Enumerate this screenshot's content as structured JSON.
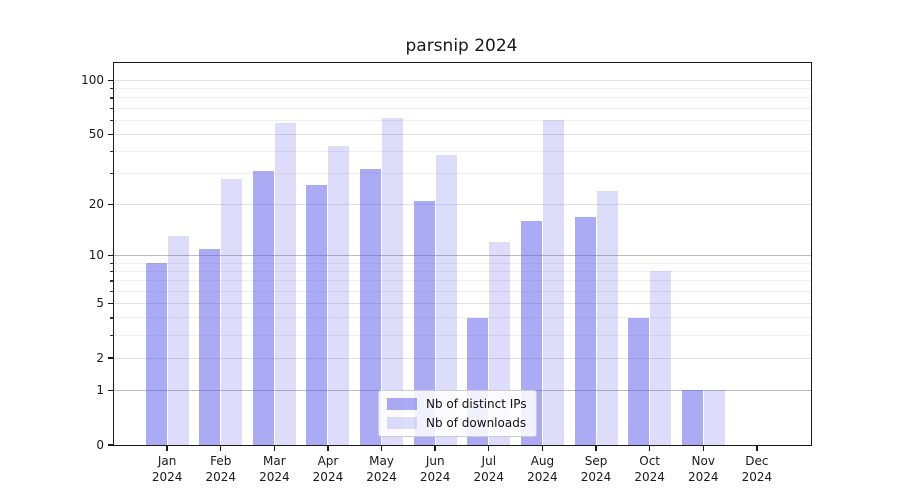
{
  "chart_data": {
    "type": "bar",
    "title": "parsnip 2024",
    "categories": [
      "Jan",
      "Feb",
      "Mar",
      "Apr",
      "May",
      "Jun",
      "Jul",
      "Aug",
      "Sep",
      "Oct",
      "Nov",
      "Dec"
    ],
    "x_tick_year": "2024",
    "series": [
      {
        "name": "Nb of distinct IPs",
        "values": [
          9,
          11,
          31,
          26,
          32,
          21,
          4,
          16,
          17,
          4,
          1,
          0
        ],
        "color_hex_on_white": "#aaaaf5",
        "alpha": 0.5
      },
      {
        "name": "Nb of downloads",
        "values": [
          13,
          28,
          58,
          43,
          62,
          38,
          12,
          60,
          24,
          8,
          1,
          0
        ],
        "color_hex_on_white": "#dcdcf8",
        "alpha": 0.2
      }
    ],
    "base_bar_color": "#5555eb",
    "y_ticks": [
      0,
      1,
      2,
      5,
      10,
      20,
      50,
      100
    ],
    "y_minor_gridlines": [
      3,
      4,
      6,
      7,
      8,
      9,
      30,
      40,
      60,
      70,
      80,
      90
    ],
    "y_decade_gridlines": [
      1,
      10
    ],
    "y_scale": "log1p",
    "ylim": [
      0,
      124
    ],
    "grid": true,
    "legend_position": "lower-center-right",
    "xlabel": "",
    "ylabel": ""
  }
}
